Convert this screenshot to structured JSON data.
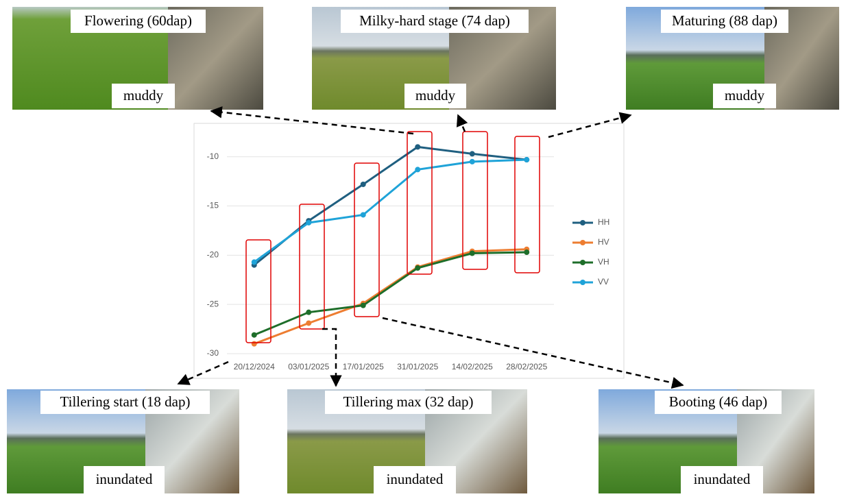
{
  "chart_data": {
    "type": "line",
    "categories": [
      "20/12/2024",
      "03/01/2025",
      "17/01/2025",
      "31/01/2025",
      "14/02/2025",
      "28/02/2025"
    ],
    "series": [
      {
        "name": "HH",
        "color": "#1f5f80",
        "values": [
          -21.0,
          -16.5,
          -12.8,
          -9.0,
          -9.7,
          -10.3
        ]
      },
      {
        "name": "HV",
        "color": "#ed7d31",
        "values": [
          -29.0,
          -26.9,
          -24.9,
          -21.2,
          -19.6,
          -19.4
        ]
      },
      {
        "name": "VH",
        "color": "#1e6e2a",
        "values": [
          -28.1,
          -25.8,
          -25.1,
          -21.3,
          -19.8,
          -19.7
        ]
      },
      {
        "name": "VV",
        "color": "#1fa3d8",
        "values": [
          -20.7,
          -16.7,
          -15.9,
          -11.3,
          -10.5,
          -10.3
        ]
      }
    ],
    "ylim": [
      -30,
      -8
    ],
    "yticks": [
      -10,
      -15,
      -20,
      -25,
      -30
    ],
    "grid": true
  },
  "panels": [
    {
      "title": "Flowering (60dap)",
      "condition": "muddy"
    },
    {
      "title": "Milky-hard stage (74 dap)",
      "condition": "muddy"
    },
    {
      "title": "Maturing (88 dap)",
      "condition": "muddy"
    },
    {
      "title": "Tillering start (18 dap)",
      "condition": "inundated"
    },
    {
      "title": "Tillering max (32 dap)",
      "condition": "inundated"
    },
    {
      "title": "Booting (46 dap)",
      "condition": "inundated"
    }
  ]
}
